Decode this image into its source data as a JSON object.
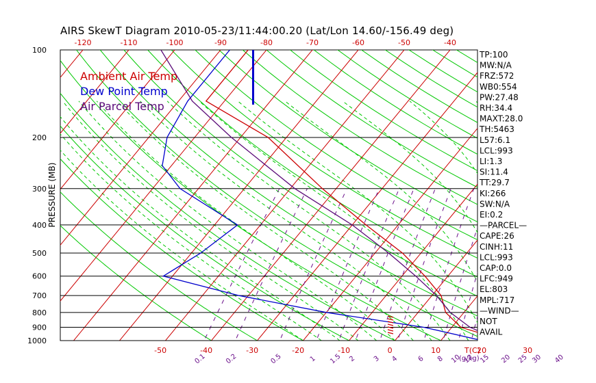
{
  "chart_data": {
    "type": "skew-t",
    "title": "AIRS SkewT Diagram 2010-05-23/11:44:00.20 (Lat/Lon 14.60/-156.49 deg)",
    "ylabel": "PRESSURE (MB)",
    "pressure_ticks": [
      100,
      200,
      300,
      400,
      500,
      600,
      700,
      800,
      900,
      1000
    ],
    "top_temp_ticks": [
      -120,
      -110,
      -100,
      -90,
      -80,
      -70,
      -60,
      -50,
      -40
    ],
    "bottom_temp_ticks": [
      -50,
      -40,
      -30,
      -20,
      -10,
      0,
      10,
      20,
      30
    ],
    "bottom_temp_unit": "T(C)",
    "mixing_ratio_ticks": [
      "0.1",
      "0.2",
      "0.5",
      "1",
      "1.5",
      "2",
      "3",
      "4",
      "6",
      "8",
      "10",
      "12",
      "15",
      "20",
      "25",
      "30",
      "40"
    ],
    "mixing_ratio_unit": "(g/kg)",
    "legend": [
      {
        "name": "Ambient Air Temp",
        "color": "#cc0000"
      },
      {
        "name": "Dew Point Temp",
        "color": "#0000cc"
      },
      {
        "name": "Air Parcel Temp",
        "color": "#5a0a78"
      }
    ],
    "series": [
      {
        "name": "Ambient Air Temp",
        "color": "#cc0000",
        "points": [
          [
            100,
            -84
          ],
          [
            150,
            -84
          ],
          [
            200,
            -64
          ],
          [
            300,
            -43
          ],
          [
            400,
            -27
          ],
          [
            500,
            -14
          ],
          [
            600,
            -5
          ],
          [
            700,
            2
          ],
          [
            800,
            6
          ],
          [
            900,
            12
          ],
          [
            1000,
            24
          ]
        ]
      },
      {
        "name": "Dew Point Temp",
        "color": "#0000cc",
        "points": [
          [
            100,
            -88
          ],
          [
            150,
            -88
          ],
          [
            200,
            -86
          ],
          [
            250,
            -82
          ],
          [
            300,
            -74
          ],
          [
            400,
            -55
          ],
          [
            500,
            -58
          ],
          [
            600,
            -62
          ],
          [
            700,
            -42
          ],
          [
            800,
            -20
          ],
          [
            900,
            4
          ],
          [
            1000,
            19
          ]
        ]
      },
      {
        "name": "Air Parcel Temp",
        "color": "#5a0a78",
        "points": [
          [
            100,
            -103
          ],
          [
            150,
            -87
          ],
          [
            200,
            -72
          ],
          [
            300,
            -49
          ],
          [
            400,
            -30
          ],
          [
            500,
            -17
          ],
          [
            600,
            -7
          ],
          [
            700,
            1
          ],
          [
            800,
            7
          ],
          [
            900,
            14
          ],
          [
            1000,
            23
          ]
        ]
      }
    ]
  },
  "stats": [
    "TP:100",
    "MW:N/A",
    "FRZ:572",
    "WB0:554",
    "PW:27.48",
    "RH:34.4",
    "MAXT:28.0",
    "TH:5463",
    "L57:6.1",
    "LCL:993",
    "LI:1.3",
    "SI:11.4",
    "TT:29.7",
    "KI:266",
    "SW:N/A",
    "EI:0.2",
    "—PARCEL—",
    "CAPE:26",
    "CINH:11",
    "LCL:993",
    "CAP:0.0",
    "LFC:949",
    "EL:803",
    "MPL:717",
    "—WIND—",
    "NOT",
    "AVAIL"
  ],
  "colors": {
    "dry_adiabat": "#00c800",
    "isotherm": "#cc0000",
    "moist_adiabat": "#00c800",
    "mixing_ratio": "#6a0f8a",
    "isobar": "#000000"
  }
}
